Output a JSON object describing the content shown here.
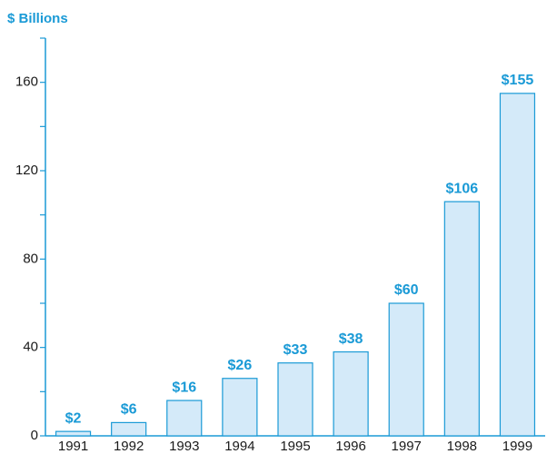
{
  "chart_data": {
    "type": "bar",
    "title": "$ Billions",
    "categories": [
      "1991",
      "1992",
      "1993",
      "1994",
      "1995",
      "1996",
      "1997",
      "1998",
      "1999"
    ],
    "values": [
      2,
      6,
      16,
      26,
      33,
      38,
      60,
      106,
      155
    ],
    "value_labels": [
      "$2",
      "$6",
      "$16",
      "$26",
      "$33",
      "$38",
      "$60",
      "$106",
      "$155"
    ],
    "color": "#d4eaf9",
    "edge_color": "#1a9ad6",
    "ylim": [
      0,
      180
    ],
    "yticks": [
      0,
      40,
      80,
      120,
      160
    ],
    "minor_yticks": [
      20,
      60,
      100,
      140,
      180
    ],
    "grid": false
  }
}
